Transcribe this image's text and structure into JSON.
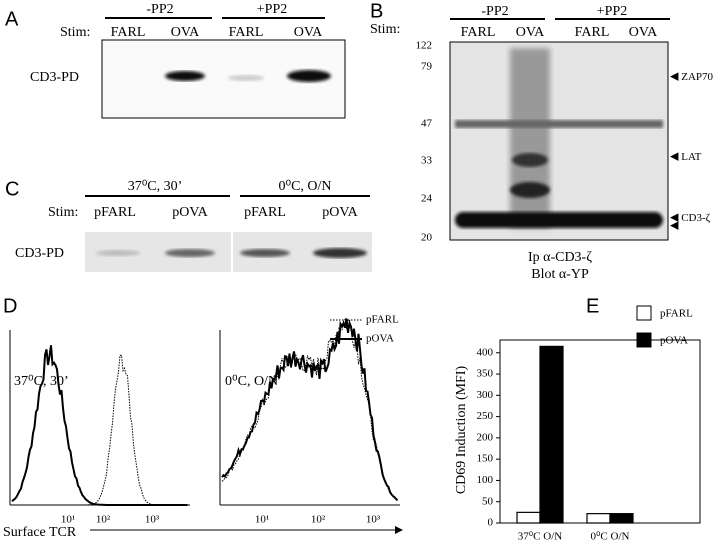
{
  "panels": {
    "A": {
      "label": "A",
      "headers": [
        "-PP2",
        "+PP2"
      ],
      "stim": "Stim:",
      "lanes": [
        "FARL",
        "OVA",
        "FARL",
        "OVA"
      ],
      "row": "CD3-PD"
    },
    "B": {
      "label": "B",
      "headers": [
        "-PP2",
        "+PP2"
      ],
      "stim": "Stim:",
      "lanes": [
        "FARL",
        "OVA",
        "FARL",
        "OVA"
      ],
      "markers": [
        "122",
        "79",
        "47",
        "33",
        "24",
        "20"
      ],
      "bands": [
        "ZAP70",
        "LAT",
        "CD3-ζ"
      ],
      "caption": [
        "Ip α-CD3-ζ",
        "Blot α-YP"
      ]
    },
    "C": {
      "label": "C",
      "headers": [
        "37⁰C, 30’",
        "0⁰C, O/N"
      ],
      "stim": "Stim:",
      "lanes": [
        "pFARL",
        "pOVA",
        "pFARL",
        "pOVA"
      ],
      "row": "CD3-PD"
    },
    "D": {
      "label": "D",
      "legend": [
        "pFARL",
        "pOVA"
      ],
      "plots": [
        "37⁰C, 30’",
        "0⁰C, O/N"
      ],
      "ticks": [
        "10¹",
        "10²",
        "10³"
      ],
      "xlabel": "Surface TCR"
    }
  },
  "chart_data": {
    "type": "bar",
    "label": "E",
    "ylabel": "CD69  Induction (MFI)",
    "categories": [
      "37⁰C O/N",
      "0⁰C O/N"
    ],
    "series": [
      {
        "name": "pFARL",
        "color": "#ffffff",
        "values": [
          25,
          22
        ]
      },
      {
        "name": "pOVA",
        "color": "#000000",
        "values": [
          415,
          22
        ]
      }
    ],
    "ylim": [
      0,
      430
    ],
    "yticks": [
      0,
      50,
      100,
      150,
      200,
      250,
      300,
      350,
      400
    ]
  }
}
